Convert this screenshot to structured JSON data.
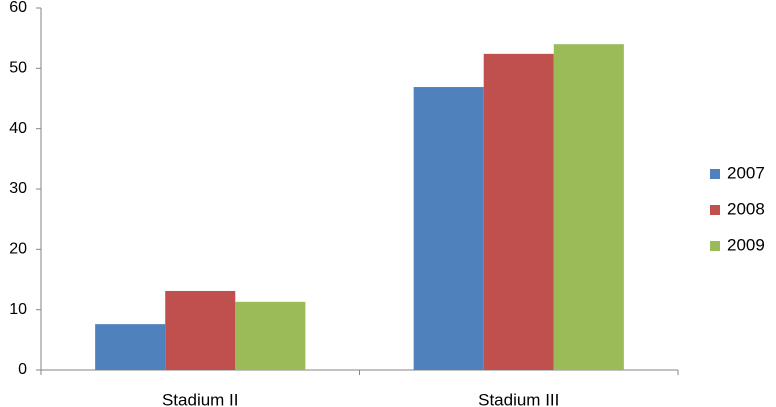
{
  "chart_data": {
    "type": "bar",
    "categories": [
      "Stadium II",
      "Stadium III"
    ],
    "series": [
      {
        "name": "2007",
        "color": "#4f81bd",
        "values": [
          7.6,
          46.9
        ]
      },
      {
        "name": "2008",
        "color": "#c0504d",
        "values": [
          13.1,
          52.4
        ]
      },
      {
        "name": "2009",
        "color": "#9bbb59",
        "values": [
          11.3,
          54
        ]
      }
    ],
    "ylim": [
      0,
      60
    ],
    "yticks": [
      0,
      10,
      20,
      30,
      40,
      50,
      60
    ],
    "grid": false,
    "legend": "right"
  }
}
